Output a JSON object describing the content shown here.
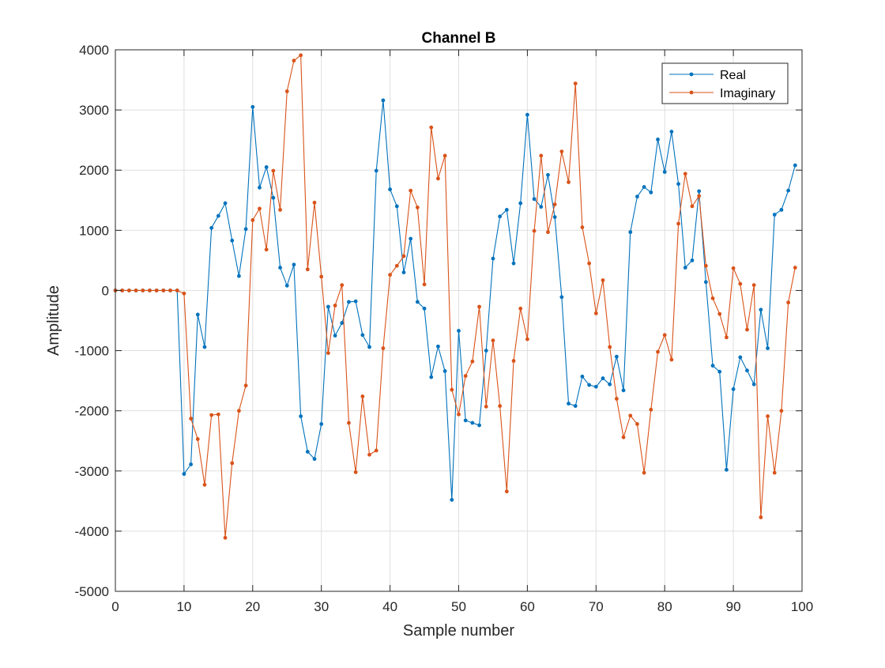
{
  "chart_data": {
    "type": "line",
    "title": "Channel B",
    "xlabel": "Sample number",
    "ylabel": "Amplitude",
    "xlim": [
      0,
      100
    ],
    "ylim": [
      -5000,
      4000
    ],
    "xticks": [
      0,
      10,
      20,
      30,
      40,
      50,
      60,
      70,
      80,
      90,
      100
    ],
    "yticks": [
      -5000,
      -4000,
      -3000,
      -2000,
      -1000,
      0,
      1000,
      2000,
      3000,
      4000
    ],
    "xtick_labels": [
      "0",
      "10",
      "20",
      "30",
      "40",
      "50",
      "60",
      "70",
      "80",
      "90",
      "100"
    ],
    "ytick_labels": [
      "-5000",
      "-4000",
      "-3000",
      "-2000",
      "-1000",
      "0",
      "1000",
      "2000",
      "3000",
      "4000"
    ],
    "grid": true,
    "legend_position": "top-right",
    "x": [
      0,
      1,
      2,
      3,
      4,
      5,
      6,
      7,
      8,
      9,
      10,
      11,
      12,
      13,
      14,
      15,
      16,
      17,
      18,
      19,
      20,
      21,
      22,
      23,
      24,
      25,
      26,
      27,
      28,
      29,
      30,
      31,
      32,
      33,
      34,
      35,
      36,
      37,
      38,
      39,
      40,
      41,
      42,
      43,
      44,
      45,
      46,
      47,
      48,
      49,
      50,
      51,
      52,
      53,
      54,
      55,
      56,
      57,
      58,
      59,
      60,
      61,
      62,
      63,
      64,
      65,
      66,
      67,
      68,
      69,
      70,
      71,
      72,
      73,
      74,
      75,
      76,
      77,
      78,
      79,
      80,
      81,
      82,
      83,
      84,
      85,
      86,
      87,
      88,
      89,
      90,
      91,
      92,
      93,
      94,
      95,
      96,
      97,
      98,
      99
    ],
    "series": [
      {
        "name": "Real",
        "color": "#0072BD",
        "values": [
          0,
          0,
          0,
          0,
          0,
          0,
          0,
          0,
          0,
          0,
          -3050,
          -2890,
          -400,
          -940,
          1040,
          1240,
          1450,
          830,
          240,
          1020,
          3050,
          1710,
          2050,
          1540,
          380,
          80,
          430,
          -2090,
          -2680,
          -2800,
          -2220,
          -270,
          -750,
          -540,
          -190,
          -180,
          -740,
          -940,
          1990,
          3160,
          1680,
          1400,
          300,
          860,
          -190,
          -300,
          -1440,
          -930,
          -1340,
          -3480,
          -670,
          -2160,
          -2200,
          -2240,
          -1000,
          530,
          1230,
          1340,
          450,
          1450,
          2920,
          1520,
          1390,
          1920,
          1220,
          -110,
          -1880,
          -1920,
          -1430,
          -1570,
          -1600,
          -1460,
          -1560,
          -1100,
          -1660,
          970,
          1560,
          1720,
          1630,
          2510,
          1970,
          2640,
          1770,
          380,
          500,
          1650,
          140,
          -1250,
          -1350,
          -2980,
          -1640,
          -1110,
          -1330,
          -1560,
          -320,
          -960,
          1260,
          1340,
          1660,
          2080
        ]
      },
      {
        "name": "Imaginary",
        "color": "#D95319",
        "values": [
          0,
          0,
          0,
          0,
          0,
          0,
          0,
          0,
          0,
          0,
          -50,
          -2130,
          -2470,
          -3230,
          -2070,
          -2060,
          -4110,
          -2870,
          -2000,
          -1580,
          1170,
          1360,
          680,
          1990,
          1340,
          3310,
          3820,
          3910,
          350,
          1460,
          230,
          -1040,
          -250,
          90,
          -2200,
          -3020,
          -1760,
          -2730,
          -2660,
          -960,
          260,
          410,
          570,
          1660,
          1380,
          100,
          2710,
          1860,
          2240,
          -1650,
          -2060,
          -1420,
          -1180,
          -270,
          -1930,
          -830,
          -1920,
          -3340,
          -1170,
          -300,
          -810,
          990,
          2240,
          970,
          1430,
          2310,
          1800,
          3440,
          1050,
          450,
          -380,
          170,
          -940,
          -1800,
          -2440,
          -2080,
          -2220,
          -3030,
          -1980,
          -1020,
          -740,
          -1150,
          1110,
          1940,
          1400,
          1570,
          410,
          -130,
          -390,
          -780,
          370,
          110,
          -650,
          90,
          -3770,
          -2090,
          -3030,
          -2000,
          -200,
          380
        ]
      }
    ]
  }
}
